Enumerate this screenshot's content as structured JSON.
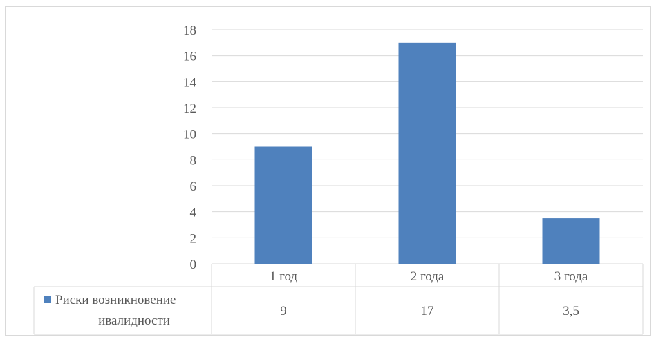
{
  "chart_data": {
    "type": "bar",
    "categories": [
      "1 год",
      "2 года",
      "3 года"
    ],
    "series": [
      {
        "name": "Риски возникновение ивалидности",
        "values": [
          9,
          17,
          3.5
        ],
        "value_labels": [
          "9",
          "17",
          "3,5"
        ],
        "color": "#4f81bd"
      }
    ],
    "ylim": [
      0,
      18
    ],
    "yticks": [
      0,
      2,
      4,
      6,
      8,
      10,
      12,
      14,
      16,
      18
    ],
    "grid": true,
    "legend_placement": "data-table",
    "title": "",
    "xlabel": "",
    "ylabel": ""
  },
  "legend": {
    "line1": "Риски возникновение",
    "line2": "ивалидности"
  }
}
